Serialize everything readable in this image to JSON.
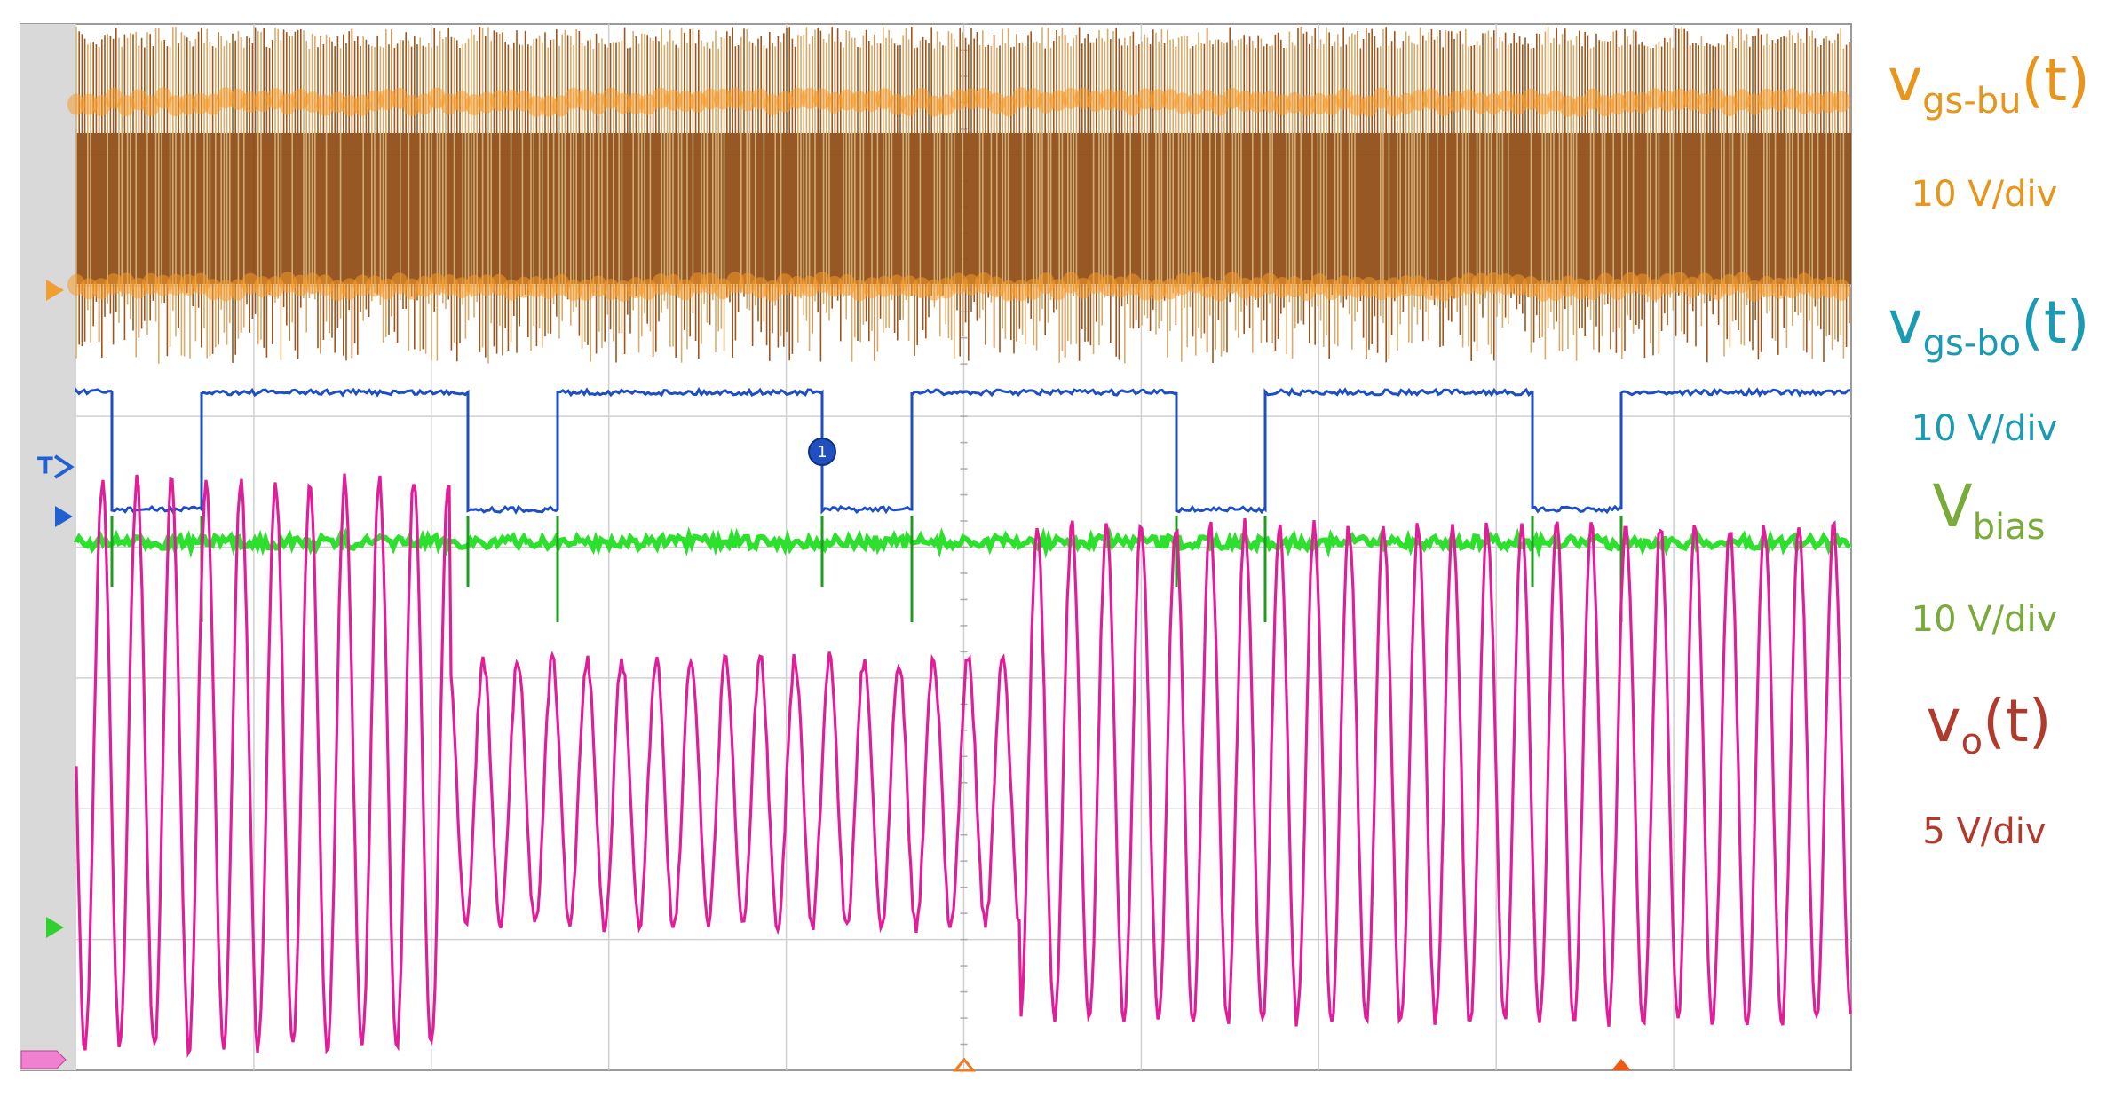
{
  "labels": [
    {
      "symbol": "v",
      "subscript": "gs-bu",
      "suffix": "(t)",
      "scale": "10 V/div",
      "color": "#e8951c"
    },
    {
      "symbol": "v",
      "subscript": "gs-bo",
      "suffix": "(t)",
      "scale": "10 V/div",
      "color": "#1b9bb3"
    },
    {
      "symbol": "V",
      "subscript": "bias",
      "scale": "10 V/div",
      "color": "#78ab3a"
    },
    {
      "symbol": "v",
      "subscript": "o",
      "suffix": "(t)",
      "scale": "5 V/div",
      "color": "#b23a2c"
    }
  ],
  "markers": {
    "cursor": "1",
    "trigger": "T"
  }
}
